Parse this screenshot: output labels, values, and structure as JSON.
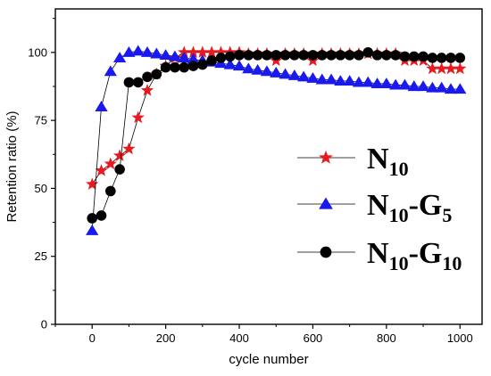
{
  "chart_data": {
    "type": "line",
    "xlabel": "cycle number",
    "ylabel": "Retention ratio (%)",
    "xlim": [
      -100,
      1060
    ],
    "ylim": [
      0,
      116
    ],
    "xticks": [
      0,
      200,
      400,
      600,
      800,
      1000
    ],
    "yticks": [
      0,
      25,
      50,
      75,
      100
    ],
    "grid": false,
    "legend_position": "right",
    "series": [
      {
        "name": "N10",
        "legend": {
          "main": "N",
          "parts": [
            {
              "sub": "10"
            }
          ]
        },
        "marker": "star",
        "color": "#e8191f",
        "x": [
          0,
          25,
          50,
          75,
          100,
          125,
          150,
          175,
          200,
          225,
          250,
          275,
          300,
          325,
          350,
          375,
          400,
          425,
          450,
          475,
          500,
          525,
          550,
          575,
          600,
          625,
          650,
          675,
          700,
          725,
          750,
          775,
          800,
          825,
          850,
          875,
          900,
          925,
          950,
          975,
          1000
        ],
        "y": [
          51.5,
          56.5,
          59,
          62,
          64.5,
          76,
          86,
          92,
          95,
          98,
          100,
          100,
          100,
          100,
          100,
          100,
          100,
          99.5,
          99.5,
          99.5,
          97,
          99.5,
          99.5,
          99.5,
          97,
          99.5,
          99.5,
          99.5,
          99.5,
          99.5,
          99.5,
          99.5,
          99.5,
          99.5,
          97,
          97,
          97,
          94,
          94,
          94,
          94
        ]
      },
      {
        "name": "N10-G5",
        "legend": {
          "main": "N",
          "parts": [
            {
              "sub": "10"
            },
            {
              "main": "-G"
            },
            {
              "sub": "5"
            }
          ]
        },
        "marker": "triangle",
        "color": "#1a1aee",
        "x": [
          0,
          25,
          50,
          75,
          100,
          125,
          150,
          175,
          200,
          225,
          250,
          275,
          300,
          325,
          350,
          375,
          400,
          425,
          450,
          475,
          500,
          525,
          550,
          575,
          600,
          625,
          650,
          675,
          700,
          725,
          750,
          775,
          800,
          825,
          850,
          875,
          900,
          925,
          950,
          975,
          1000
        ],
        "y": [
          34.5,
          80,
          93,
          98,
          100,
          100.5,
          100,
          99.5,
          99,
          98.5,
          98,
          97.5,
          97,
          96.5,
          96,
          95.5,
          95,
          94,
          93.5,
          93,
          92.5,
          92,
          91.5,
          91,
          90.5,
          90,
          90,
          89.5,
          89.5,
          89,
          89,
          88.5,
          88.5,
          88,
          88,
          87.5,
          87.5,
          87,
          87,
          86.5,
          86.5
        ]
      },
      {
        "name": "N10-G10",
        "legend": {
          "main": "N",
          "parts": [
            {
              "sub": "10"
            },
            {
              "main": "-G"
            },
            {
              "sub": "10"
            }
          ]
        },
        "marker": "circle",
        "color": "#000000",
        "x": [
          0,
          25,
          50,
          75,
          100,
          125,
          150,
          175,
          200,
          225,
          250,
          275,
          300,
          325,
          350,
          375,
          400,
          425,
          450,
          475,
          500,
          525,
          550,
          575,
          600,
          625,
          650,
          675,
          700,
          725,
          750,
          775,
          800,
          825,
          850,
          875,
          900,
          925,
          950,
          975,
          1000
        ],
        "y": [
          39,
          40,
          49,
          57,
          89,
          89,
          91,
          92,
          94.5,
          94.5,
          94.5,
          95,
          95.5,
          97,
          98,
          98.5,
          99,
          99,
          99,
          99,
          99,
          99,
          99,
          99,
          99,
          99,
          99,
          99,
          99,
          99,
          100,
          99,
          99,
          99,
          98.5,
          98.5,
          98.5,
          98,
          98,
          98,
          98
        ]
      }
    ]
  }
}
